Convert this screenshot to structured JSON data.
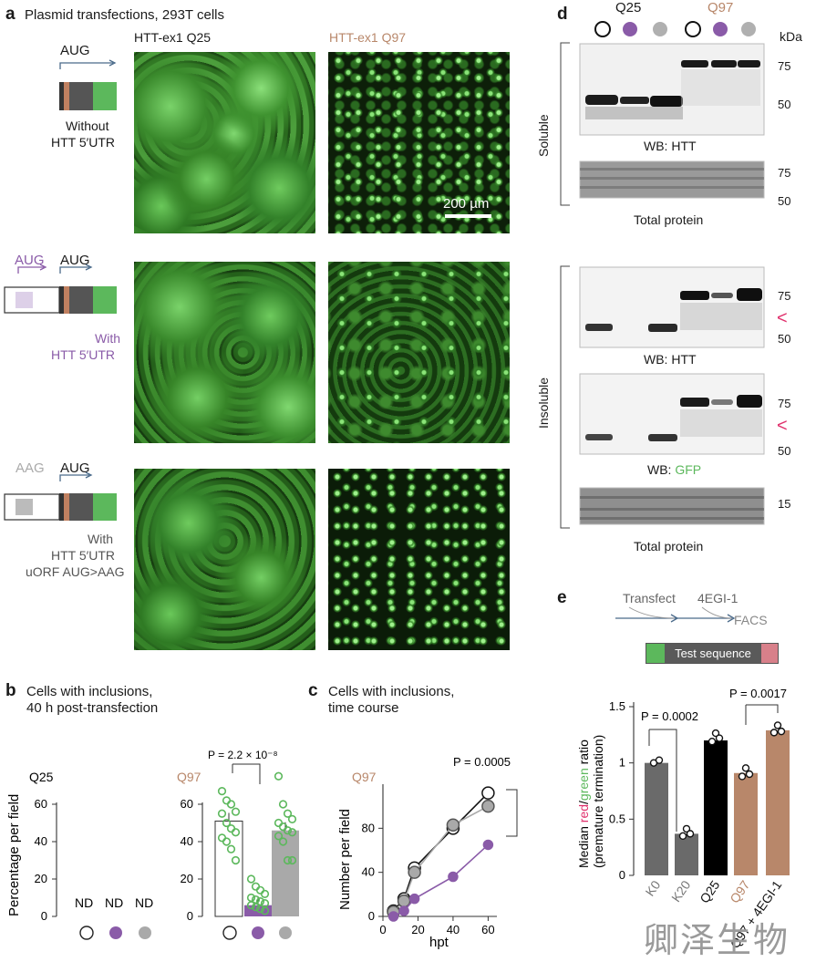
{
  "panel_a": {
    "letter": "a",
    "title": "Plasmid transfections, 293T cells",
    "col_q25": "HTT-ex1 Q25",
    "col_q97": "HTT-ex1 Q97",
    "scale_bar": "200 µm",
    "rows": [
      {
        "codon1": "AUG",
        "codon2": "",
        "label_line1": "Without",
        "label_line2": "HTT 5′UTR",
        "label_line3": ""
      },
      {
        "codon1": "AUG",
        "codon2": "AUG",
        "label_line1": "With",
        "label_line2": "HTT 5′UTR",
        "label_line3": ""
      },
      {
        "codon1": "AAG",
        "codon2": "AUG",
        "label_line1": "With",
        "label_line2": "HTT 5′UTR",
        "label_line3": "uORF AUG>AAG"
      }
    ]
  },
  "panel_b": {
    "letter": "b",
    "title_line1": "Cells with inclusions,",
    "title_line2": "40 h post-transfection",
    "ylabel": "Percentage per field",
    "group_q25": "Q25",
    "group_q97": "Q97",
    "nd": "ND",
    "pvalue": "P = 2.2 × 10⁻⁸",
    "ticks": [
      "0",
      "20",
      "40",
      "60"
    ]
  },
  "panel_c": {
    "letter": "c",
    "title_line1": "Cells with inclusions,",
    "title_line2": "time course",
    "group": "Q97",
    "ylabel": "Number per field",
    "xlabel": "hpt",
    "pvalue": "P = 0.0005",
    "yticks": [
      "0",
      "40",
      "80"
    ],
    "xticks": [
      "0",
      "20",
      "40",
      "60"
    ]
  },
  "panel_d": {
    "letter": "d",
    "header_q25": "Q25",
    "header_q97": "Q97",
    "kda": "kDa",
    "soluble": "Soluble",
    "insoluble": "Insoluble",
    "wb_htt": "WB: HTT",
    "wb_gfp_prefix": "WB: ",
    "wb_gfp_word": "GFP",
    "total_protein": "Total protein",
    "mw": {
      "m75": "75",
      "m50": "50",
      "m15": "15"
    },
    "arrow": "<"
  },
  "panel_e": {
    "letter": "e",
    "step1": "Transfect",
    "step2": "4EGI-1",
    "step3": "FACS",
    "construct": "Test sequence",
    "ylabel_line1_a": "Median ",
    "ylabel_line1_red": "red",
    "ylabel_line1_sep": "/",
    "ylabel_line1_green": "green",
    "ylabel_line1_b": " ratio",
    "ylabel_line2": "(premature termination)",
    "p1": "P = 0.0002",
    "p2": "P = 0.0017",
    "yticks": [
      "0",
      "0.5",
      "1",
      "1.5"
    ],
    "xticks": [
      "K0",
      "K20",
      "Q25",
      "Q97",
      "Q97 + 4EGI-1"
    ]
  },
  "watermark": "卿泽生物",
  "colors": {
    "purple": "#8a5ba8",
    "gray": "#a9a9a9",
    "q97_orange": "#b8876a",
    "green": "#5cb85c",
    "red_arrow": "#e0306c",
    "dark": "#555555"
  },
  "chart_data": [
    {
      "id": "b_q97",
      "type": "bar",
      "categories": [
        "Without HTT 5′UTR",
        "With HTT 5′UTR",
        "With HTT 5′UTR uORF AUG>AAG"
      ],
      "values": [
        51,
        6,
        46
      ],
      "ylim": [
        0,
        75
      ],
      "ylabel": "Percentage per field",
      "points": [
        [
          67,
          62,
          60,
          56,
          55,
          50,
          47,
          45,
          42,
          40,
          36,
          30
        ],
        [
          20,
          16,
          14,
          12,
          10,
          9,
          8,
          7,
          6,
          5,
          4,
          3
        ],
        [
          75,
          60,
          55,
          52,
          50,
          48,
          46,
          45,
          43,
          40,
          30,
          30
        ]
      ]
    },
    {
      "id": "c_timecourse",
      "type": "line",
      "x": [
        6,
        12,
        18,
        40,
        60
      ],
      "series": [
        {
          "values": [
            5,
            16,
            44,
            80,
            112
          ]
        },
        {
          "values": [
            4,
            14,
            40,
            83,
            100
          ]
        },
        {
          "values": [
            0,
            5,
            16,
            36,
            65
          ]
        }
      ],
      "xlabel": "hpt",
      "ylabel": "Number per field",
      "xlim": [
        0,
        65
      ],
      "ylim": [
        0,
        120
      ]
    },
    {
      "id": "e_ratio",
      "type": "bar",
      "categories": [
        "K0",
        "K20",
        "Q25",
        "Q97",
        "Q97 + 4EGI-1"
      ],
      "values": [
        1.0,
        0.37,
        1.2,
        0.91,
        1.29
      ],
      "ylim": [
        0,
        1.5
      ],
      "ylabel": "Median red/green ratio (premature termination)"
    }
  ]
}
